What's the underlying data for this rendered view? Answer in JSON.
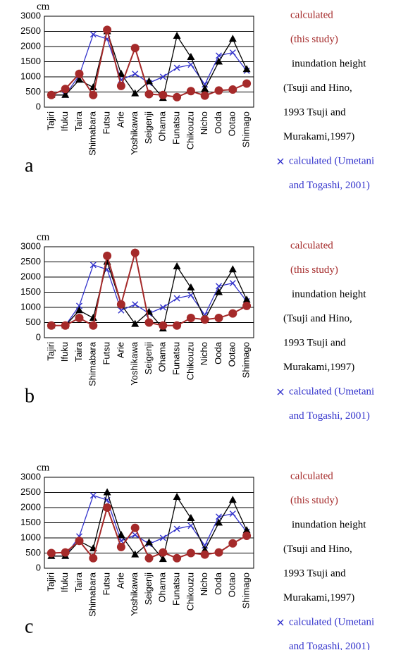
{
  "chart_data": [
    {
      "type": "line",
      "panel_label": "a",
      "unit_label": "cm",
      "categories": [
        "Tajiri",
        "Ifuku",
        "Taira",
        "Shimabara",
        "Futsu",
        "Arie",
        "Yoshikawa",
        "Seigenji",
        "Ohama",
        "Funatsu",
        "Chikouzu",
        "Nicho",
        "Ooda",
        "Ootao",
        "Shimago"
      ],
      "ylim": [
        0,
        3000
      ],
      "yticks": [
        0,
        500,
        1000,
        1500,
        2000,
        2500,
        3000
      ],
      "grid": true,
      "series": [
        {
          "name": [
            "calculated",
            "(this study)"
          ],
          "color": "#a52a2a",
          "marker": "circle",
          "legend_marker": false,
          "values": [
            400,
            600,
            1100,
            400,
            2550,
            700,
            1950,
            430,
            400,
            330,
            530,
            380,
            550,
            580,
            780
          ]
        },
        {
          "name": [
            "inundation height",
            "(Tsuji and Hino,",
            "1993 Tsuji and",
            "Murakami,1997)"
          ],
          "color": "#000000",
          "marker": "triangle",
          "legend_marker": false,
          "values": [
            400,
            400,
            900,
            650,
            2500,
            1100,
            450,
            850,
            300,
            2350,
            1650,
            600,
            1500,
            2250,
            1250
          ]
        },
        {
          "name": [
            "calculated (Umetani",
            "and Togashi, 2001)"
          ],
          "color": "#3333cc",
          "marker": "x",
          "legend_marker": true,
          "values": [
            400,
            400,
            1050,
            2400,
            2250,
            900,
            1100,
            800,
            1000,
            1300,
            1400,
            750,
            1700,
            1800,
            1200
          ]
        }
      ]
    },
    {
      "type": "line",
      "panel_label": "b",
      "unit_label": "cm",
      "categories": [
        "Tajiri",
        "Ifuku",
        "Taira",
        "Shimabara",
        "Futsu",
        "Arie",
        "Yoshikawa",
        "Seigenji",
        "Ohama",
        "Funatsu",
        "Chikouzu",
        "Nicho",
        "Ooda",
        "Ootao",
        "Shimago"
      ],
      "ylim": [
        0,
        3000
      ],
      "yticks": [
        0,
        500,
        1000,
        1500,
        2000,
        2500,
        3000
      ],
      "grid": true,
      "series": [
        {
          "name": [
            "calculated",
            "(this study)"
          ],
          "color": "#a52a2a",
          "marker": "circle",
          "legend_marker": false,
          "values": [
            400,
            400,
            650,
            400,
            2700,
            1100,
            2800,
            500,
            400,
            400,
            650,
            600,
            650,
            800,
            1050
          ]
        },
        {
          "name": [
            "inundation height",
            "(Tsuji and Hino,",
            "1993 Tsuji and",
            "Murakami,1997)"
          ],
          "color": "#000000",
          "marker": "triangle",
          "legend_marker": false,
          "values": [
            400,
            400,
            900,
            650,
            2500,
            1100,
            450,
            850,
            300,
            2350,
            1650,
            600,
            1500,
            2250,
            1250
          ]
        },
        {
          "name": [
            "calculated (Umetani",
            "and Togashi, 2001)"
          ],
          "color": "#3333cc",
          "marker": "x",
          "legend_marker": true,
          "values": [
            400,
            400,
            1050,
            2400,
            2250,
            900,
            1100,
            800,
            1000,
            1300,
            1400,
            750,
            1700,
            1800,
            1200
          ]
        }
      ]
    },
    {
      "type": "line",
      "panel_label": "c",
      "unit_label": "cm",
      "categories": [
        "Tajiri",
        "Ifuku",
        "Taira",
        "Shimabara",
        "Futsu",
        "Arie",
        "Yoshikawa",
        "Seigenji",
        "Ohama",
        "Funatsu",
        "Chikouzu",
        "Nicho",
        "Ooda",
        "Ootao",
        "Shimago"
      ],
      "ylim": [
        0,
        3000
      ],
      "yticks": [
        0,
        500,
        1000,
        1500,
        2000,
        2500,
        3000
      ],
      "grid": true,
      "series": [
        {
          "name": [
            "calculated",
            "(this study)"
          ],
          "color": "#a52a2a",
          "marker": "circle",
          "legend_marker": false,
          "values": [
            500,
            520,
            900,
            330,
            2000,
            700,
            1330,
            330,
            520,
            330,
            500,
            450,
            520,
            820,
            1070
          ]
        },
        {
          "name": [
            "inundation height",
            "(Tsuji and Hino,",
            "1993 Tsuji and",
            "Murakami,1997)"
          ],
          "color": "#000000",
          "marker": "triangle",
          "legend_marker": false,
          "values": [
            400,
            400,
            900,
            650,
            2500,
            1100,
            450,
            850,
            300,
            2350,
            1650,
            600,
            1500,
            2250,
            1250
          ]
        },
        {
          "name": [
            "calculated (Umetani",
            "and Togashi, 2001)"
          ],
          "color": "#3333cc",
          "marker": "x",
          "legend_marker": true,
          "values": [
            400,
            400,
            1050,
            2400,
            2250,
            900,
            1100,
            800,
            1000,
            1300,
            1400,
            750,
            1700,
            1800,
            1200
          ]
        }
      ]
    }
  ]
}
